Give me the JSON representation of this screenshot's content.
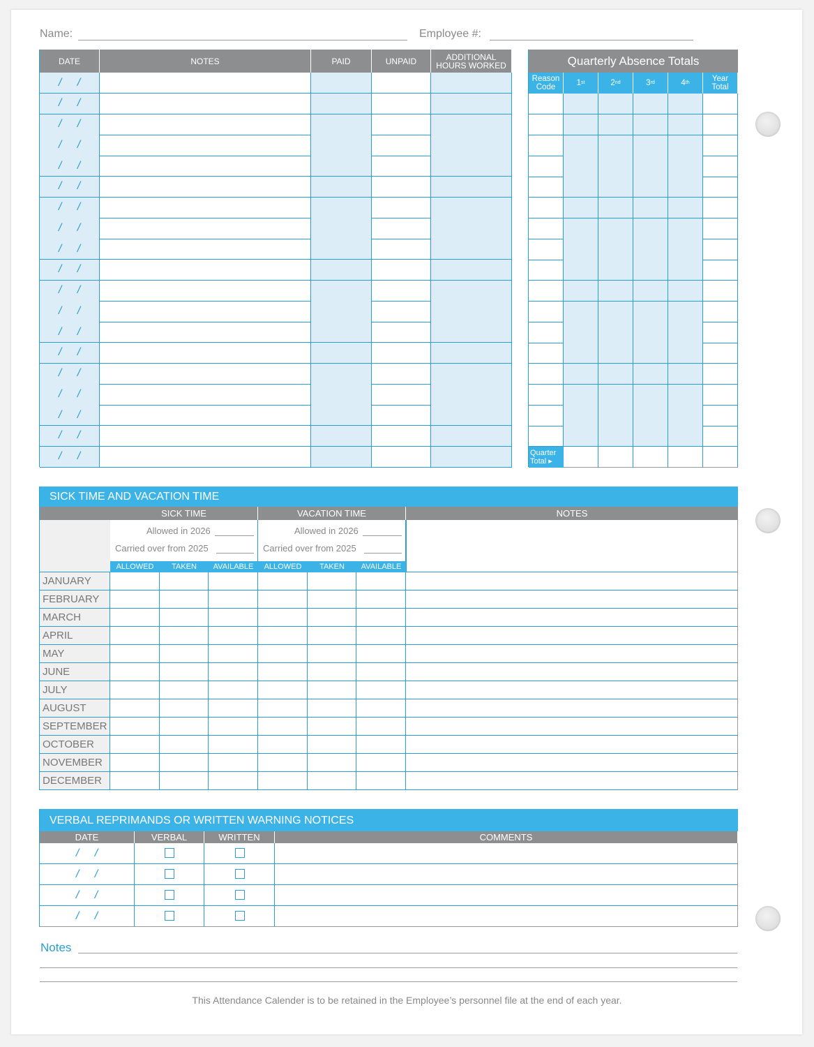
{
  "header": {
    "name_label": "Name:",
    "employee_label": "Employee #:"
  },
  "log_table": {
    "columns": [
      "DATE",
      "NOTES",
      "PAID",
      "UNPAID",
      "ADDITIONAL HOURS WORKED"
    ],
    "date_placeholder": "/ /",
    "row_count": 19
  },
  "quarterly": {
    "title": "Quarterly Absence Totals",
    "columns": [
      {
        "label": "Reason Code"
      },
      {
        "label": "1",
        "sup": "st"
      },
      {
        "label": "2",
        "sup": "nd"
      },
      {
        "label": "3",
        "sup": "rd"
      },
      {
        "label": "4",
        "sup": "th"
      },
      {
        "label": "Year Total"
      }
    ],
    "quarter_total_label": "Quarter Total ▸",
    "row_count": 17
  },
  "sick_vacation": {
    "title": "SICK TIME AND VACATION TIME",
    "sick_label": "SICK TIME",
    "vacation_label": "VACATION TIME",
    "notes_label": "NOTES",
    "allowed_text": "Allowed in 2026",
    "carried_text": "Carried over from 2025",
    "subcolumns": [
      "ALLOWED",
      "TAKEN",
      "AVAILABLE",
      "ALLOWED",
      "TAKEN",
      "AVAILABLE"
    ],
    "months": [
      "JANUARY",
      "FEBRUARY",
      "MARCH",
      "APRIL",
      "MAY",
      "JUNE",
      "JULY",
      "AUGUST",
      "SEPTEMBER",
      "OCTOBER",
      "NOVEMBER",
      "DECEMBER"
    ]
  },
  "warnings": {
    "title": "VERBAL REPRIMANDS OR WRITTEN WARNING NOTICES",
    "columns": [
      "DATE",
      "VERBAL",
      "WRITTEN",
      "COMMENTS"
    ],
    "date_placeholder": "/ /",
    "row_count": 4
  },
  "notes_label": "Notes",
  "footer": "This Attendance Calender is to be retained in the Employee’s personnel file at the end of each year.",
  "colors": {
    "blue": "#3bb3e6",
    "gray": "#8c8e90",
    "light_blue": "#dcedf8",
    "line": "#2a9ed3"
  }
}
